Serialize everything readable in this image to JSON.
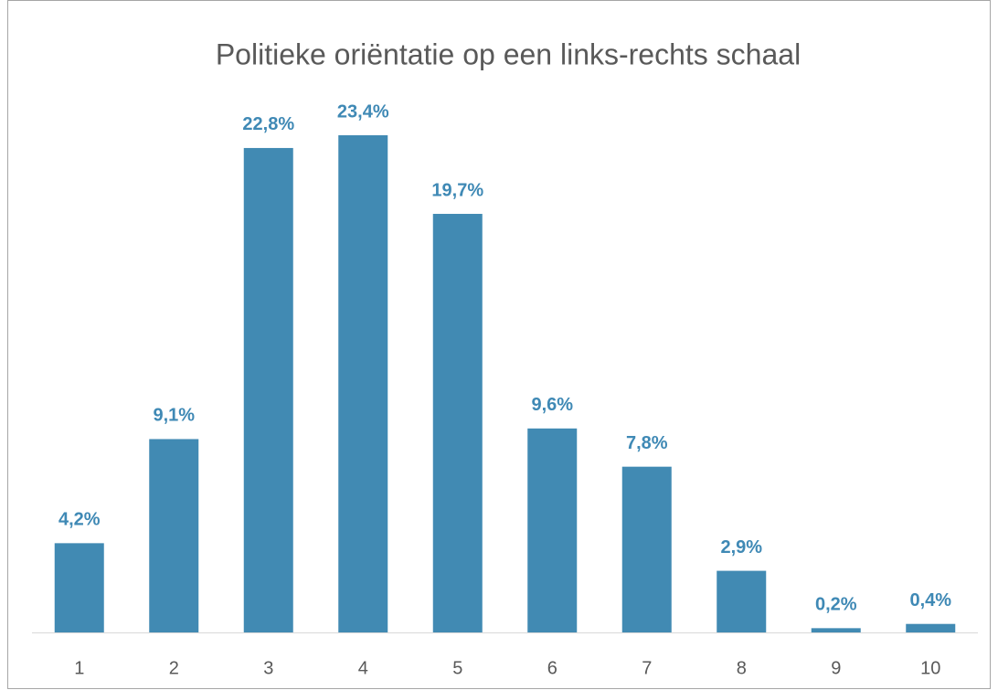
{
  "chart_data": {
    "type": "bar",
    "title": "Politieke oriëntatie op een links-rechts schaal",
    "categories": [
      "1",
      "2",
      "3",
      "4",
      "5",
      "6",
      "7",
      "8",
      "9",
      "10"
    ],
    "values": [
      4.2,
      9.1,
      22.8,
      23.4,
      19.7,
      9.6,
      7.8,
      2.9,
      0.2,
      0.4
    ],
    "value_labels": [
      "4,2%",
      "9,1%",
      "22,8%",
      "23,4%",
      "19,7%",
      "9,6%",
      "7,8%",
      "2,9%",
      "0,2%",
      "0,4%"
    ],
    "color": "#418ab3"
  }
}
